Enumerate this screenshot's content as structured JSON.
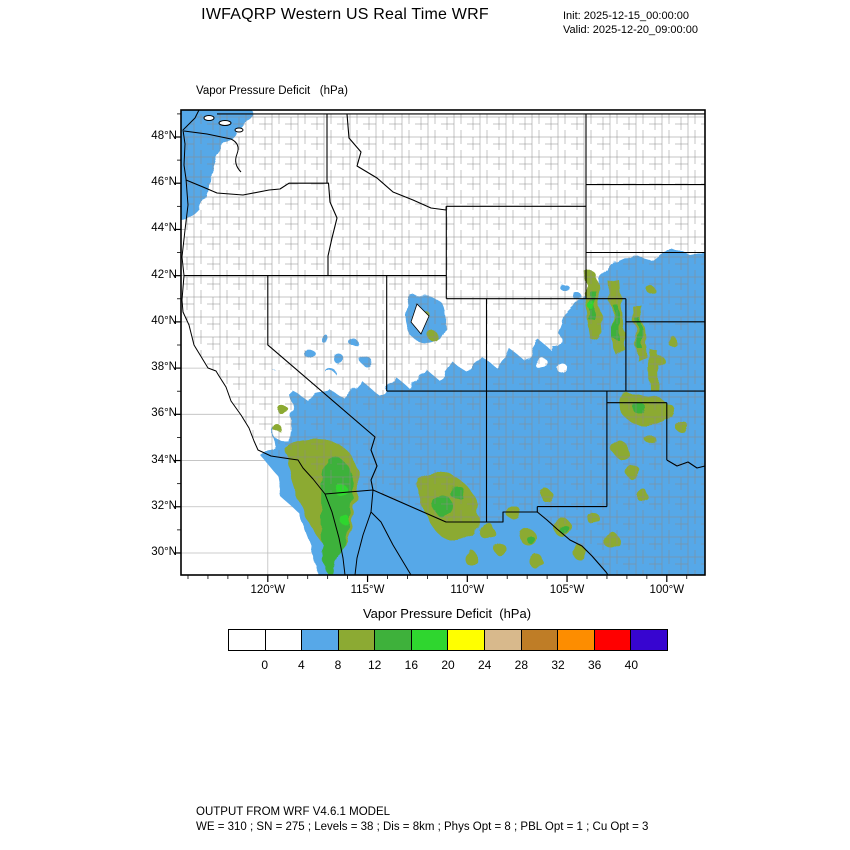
{
  "header": {
    "title": "IWFAQRP Western US Real Time WRF",
    "init_line": "Init: 2025-12-15_00:00:00",
    "valid_line": "Valid: 2025-12-20_09:00:00"
  },
  "map": {
    "field_label": "Vapor Pressure Deficit   (hPa)",
    "lat_labels": [
      "48°N",
      "46°N",
      "44°N",
      "42°N",
      "40°N",
      "38°N",
      "36°N",
      "34°N",
      "32°N",
      "30°N"
    ],
    "lon_labels": [
      "120°W",
      "115°W",
      "110°W",
      "105°W",
      "100°W"
    ]
  },
  "colorbar": {
    "title": "Vapor Pressure Deficit  (hPa)",
    "tick_labels": [
      "0",
      "4",
      "8",
      "12",
      "16",
      "20",
      "24",
      "28",
      "32",
      "36",
      "40"
    ],
    "colors": [
      "#ffffff",
      "#ffffff",
      "#57a8e8",
      "#8caa33",
      "#3eb13b",
      "#2fd62f",
      "#ffff00",
      "#d8b98c",
      "#bf7d26",
      "#fd8d00",
      "#ff0000",
      "#3705d0"
    ],
    "field_colors": {
      "vpd_4_8": "#57a8e8",
      "vpd_8_12": "#8caa33",
      "vpd_12_16": "#3eb13b",
      "vpd_16_20": "#2fd62f"
    }
  },
  "footer": {
    "line1": "OUTPUT FROM WRF V4.6.1 MODEL",
    "line2": "WE = 310 ; SN = 275 ; Levels = 38 ; Dis = 8km ; Phys Opt = 8 ; PBL Opt = 1 ; Cu Opt = 3"
  }
}
